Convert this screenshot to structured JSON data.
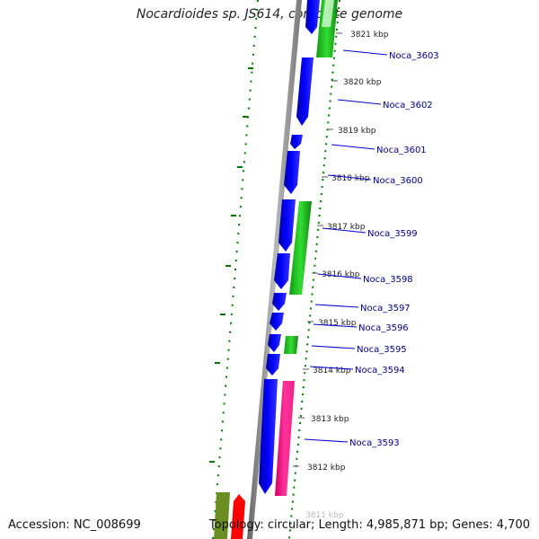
{
  "header": {
    "title": "Nocardioides sp. JS614, complete genome"
  },
  "footer": {
    "accession": "Accession: NC_008699",
    "summary": "Topology: circular; Length: 4,985,871 bp; Genes: 4,700"
  },
  "colors": {
    "cds_forward": "#0000ff",
    "cds_reverse": "#22cc22",
    "pink_feature": "#ff3399",
    "olive_feature": "#6b8e23",
    "red_feature": "#ff0000",
    "backbone": "#888888",
    "gc_ticks": "#007700",
    "label_text": "#000088",
    "label_line": "#0000cc"
  },
  "ticks": [
    "3821 kbp",
    "3820 kbp",
    "3819 kbp",
    "3818 kbp",
    "3817 kbp",
    "3816 kbp",
    "3815 kbp",
    "3814 kbp",
    "3813 kbp",
    "3812 kbp",
    "3811 kbp"
  ],
  "gene_labels": [
    "Noca_3603",
    "Noca_3602",
    "Noca_3601",
    "Noca_3600",
    "Noca_3599",
    "Noca_3598",
    "Noca_3597",
    "Noca_3596",
    "Noca_3595",
    "Noca_3594",
    "Noca_3593"
  ]
}
